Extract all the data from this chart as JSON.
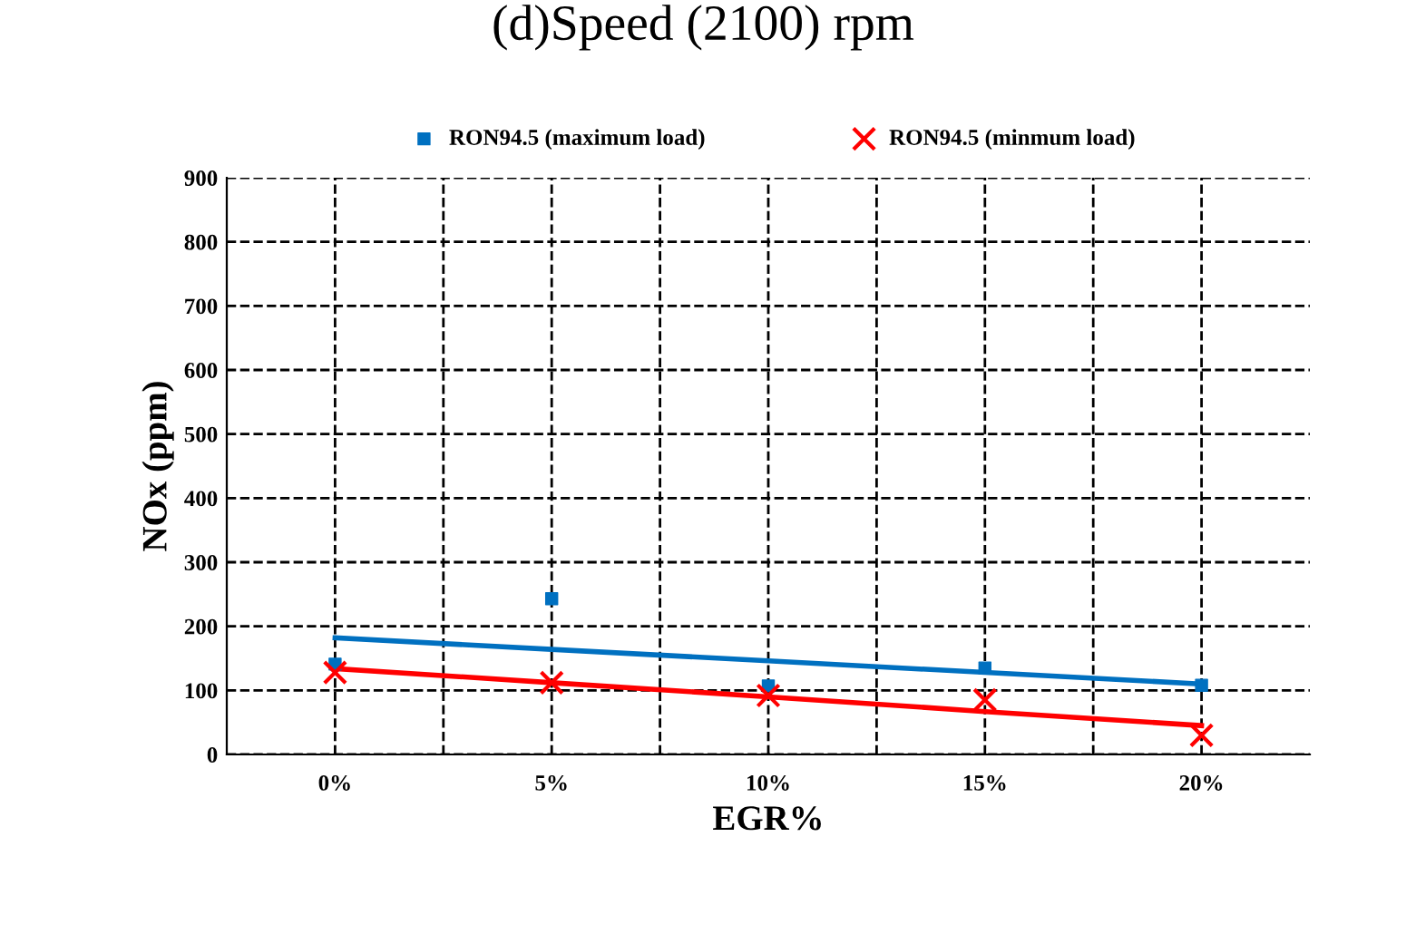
{
  "chart_data": {
    "type": "scatter",
    "title": "(d)Speed (2100) rpm",
    "xlabel": "EGR%",
    "ylabel": "NOx (ppm)",
    "categories": [
      "0%",
      "5%",
      "10%",
      "15%",
      "20%"
    ],
    "series": [
      {
        "name": "RON94.5 (maximum load)",
        "color": "#0070c0",
        "marker": "square",
        "values": [
          141,
          243,
          107,
          135,
          108
        ]
      },
      {
        "name": "RON94.5 (minmum load)",
        "color": "#ff0000",
        "marker": "cross",
        "values": [
          128,
          112,
          92,
          85,
          30
        ]
      },
      {
        "type": "line",
        "color": "#0070c0",
        "values": [
          182,
          164,
          146,
          128,
          110
        ]
      },
      {
        "type": "line",
        "color": "#ff0000",
        "values": [
          134,
          112,
          90,
          67,
          45
        ]
      }
    ],
    "ylim": [
      0,
      900
    ],
    "yticks": [
      0,
      100,
      200,
      300,
      400,
      500,
      600,
      700,
      800,
      900
    ],
    "grid": true,
    "legend": "top"
  }
}
